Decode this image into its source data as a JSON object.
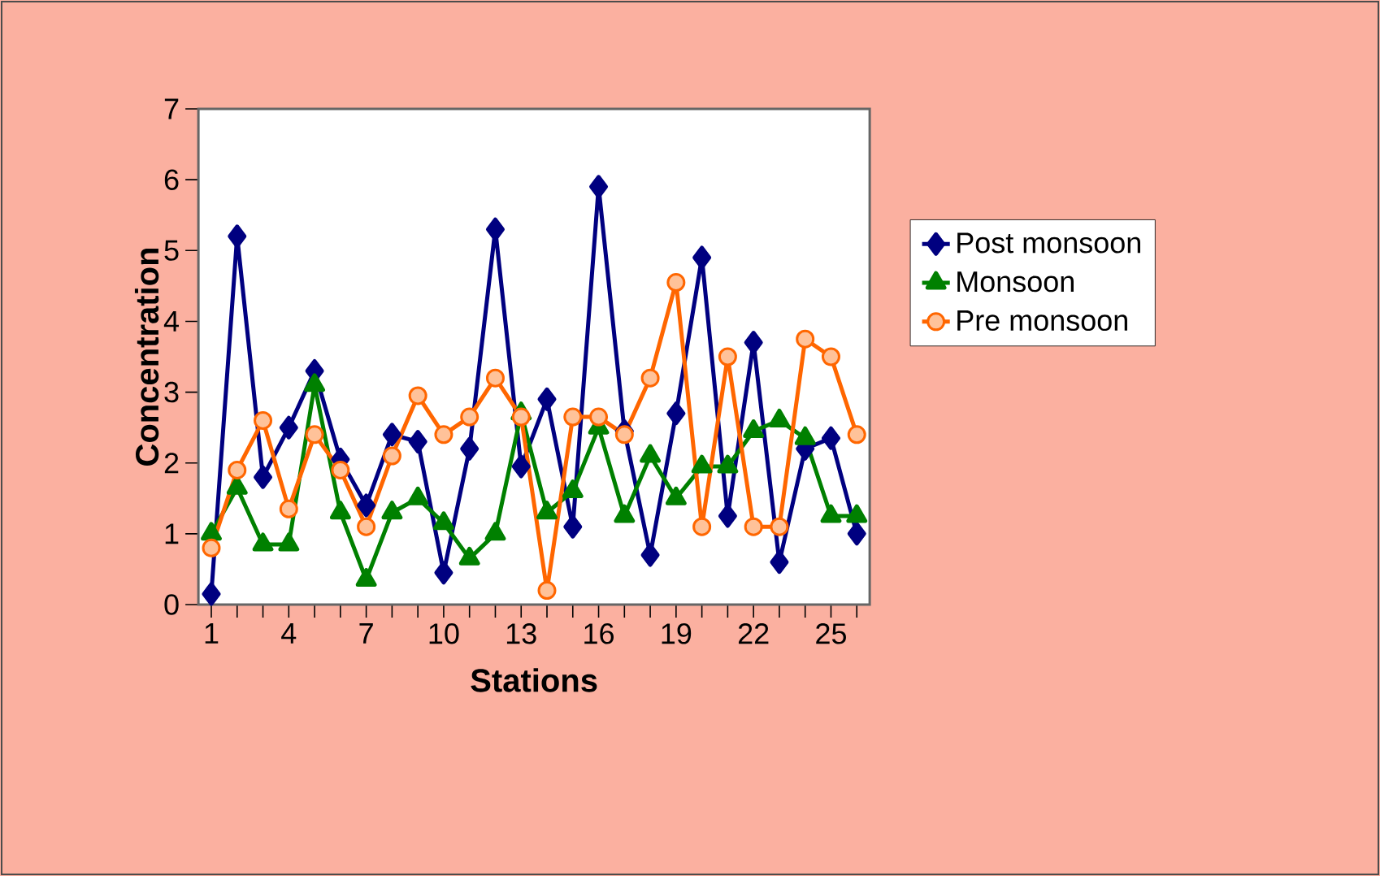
{
  "chart_data": {
    "type": "line",
    "xlabel": "Stations",
    "ylabel": "Concentration",
    "categories": [
      "1",
      null,
      null,
      "4",
      null,
      null,
      "7",
      null,
      null,
      "10",
      null,
      null,
      "13",
      null,
      null,
      "16",
      null,
      null,
      "19",
      null,
      null,
      "22",
      null,
      null,
      "25",
      null
    ],
    "series": [
      {
        "name": "Post monsoon",
        "color": "#000080",
        "marker": "diamond",
        "values": [
          0.15,
          5.2,
          1.8,
          2.5,
          3.3,
          2.05,
          1.4,
          2.4,
          2.3,
          0.45,
          2.2,
          5.3,
          1.95,
          2.9,
          1.1,
          5.9,
          2.45,
          0.7,
          2.7,
          4.9,
          1.25,
          3.7,
          0.6,
          2.2,
          2.35,
          1.0
        ]
      },
      {
        "name": "Monsoon",
        "color": "#008000",
        "marker": "triangle",
        "values": [
          1.0,
          1.65,
          0.85,
          0.85,
          3.1,
          1.3,
          0.35,
          1.3,
          1.5,
          1.15,
          0.65,
          1.0,
          2.7,
          1.3,
          1.6,
          2.5,
          1.25,
          2.1,
          1.5,
          1.95,
          1.95,
          2.45,
          2.6,
          2.35,
          1.25,
          1.25
        ]
      },
      {
        "name": "Pre monsoon",
        "color": "#ff6600",
        "marker": "circle",
        "values": [
          0.8,
          1.9,
          2.6,
          1.35,
          2.4,
          1.9,
          1.1,
          2.1,
          2.95,
          2.4,
          2.65,
          3.2,
          2.65,
          0.2,
          2.65,
          2.65,
          2.4,
          3.2,
          4.55,
          1.1,
          3.5,
          1.1,
          1.1,
          3.75,
          3.5,
          2.4
        ]
      }
    ],
    "ylim": [
      0,
      7
    ],
    "yticks": [
      0,
      1,
      2,
      3,
      4,
      5,
      6,
      7
    ],
    "grid": false,
    "legend": "right"
  }
}
